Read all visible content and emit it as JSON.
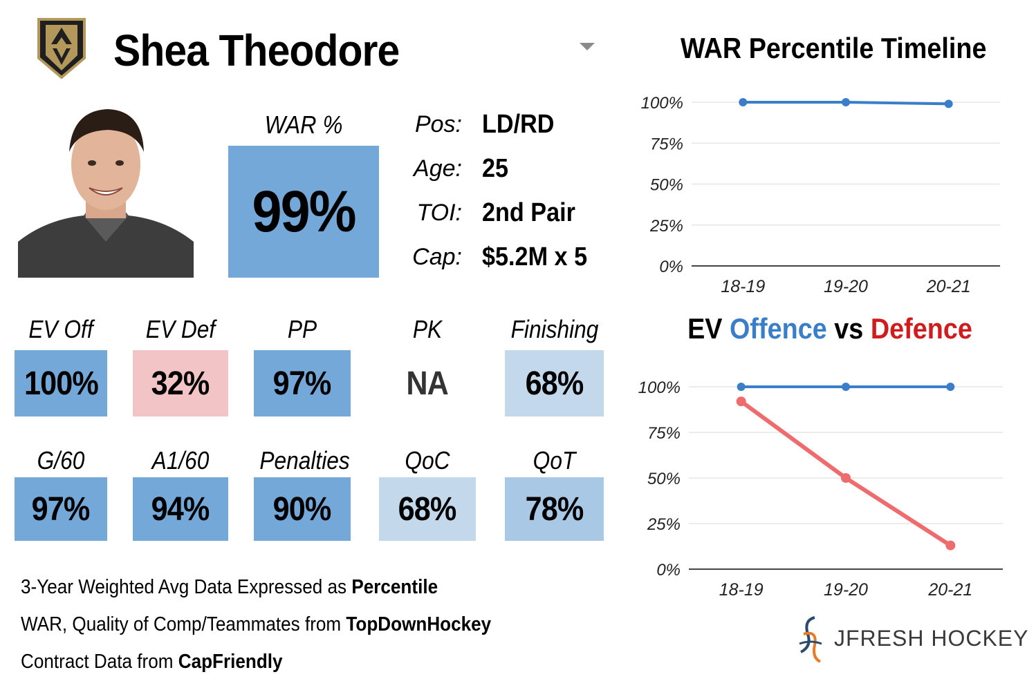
{
  "header": {
    "player_name": "Shea Theodore",
    "logo_icon": "vegas-golden-knights-helmet-logo"
  },
  "war": {
    "label": "WAR %",
    "value": "99%",
    "color": "#74a8d9"
  },
  "info": [
    {
      "key": "Pos:",
      "value": "LD/RD"
    },
    {
      "key": "Age:",
      "value": "25"
    },
    {
      "key": "TOI:",
      "value": "2nd Pair"
    },
    {
      "key": "Cap:",
      "value": "$5.2M x 5"
    }
  ],
  "stats_row1": [
    {
      "label": "EV Off",
      "value": "100%",
      "color": "#74a8d9"
    },
    {
      "label": "EV Def",
      "value": "32%",
      "color": "#f3c4c6"
    },
    {
      "label": "PP",
      "value": "97%",
      "color": "#74a8d9"
    },
    {
      "label": "PK",
      "value": "NA",
      "color": "#ffffff"
    },
    {
      "label": "Finishing",
      "value": "68%",
      "color": "#c4d8ec"
    }
  ],
  "stats_row2": [
    {
      "label": "G/60",
      "value": "97%",
      "color": "#74a8d9"
    },
    {
      "label": "A1/60",
      "value": "94%",
      "color": "#74a8d9"
    },
    {
      "label": "Penalties",
      "value": "90%",
      "color": "#74a8d9"
    },
    {
      "label": "QoC",
      "value": "68%",
      "color": "#c4d8ec"
    },
    {
      "label": "QoT",
      "value": "78%",
      "color": "#a9c8e6"
    }
  ],
  "notes": [
    {
      "text": "3-Year Weighted Avg Data Expressed as ",
      "bold": "Percentile"
    },
    {
      "text": "WAR, Quality of Comp/Teammates from ",
      "bold": "TopDownHockey"
    },
    {
      "text": "Contract Data from ",
      "bold": "CapFriendly"
    }
  ],
  "brand": {
    "text": "JFRESH HOCKEY",
    "icon": "jfresh-hockey-logo-icon"
  },
  "chart_data": [
    {
      "type": "line",
      "title": "WAR Percentile Timeline",
      "x": [
        "18-19",
        "19-20",
        "20-21"
      ],
      "yticks": [
        "0%",
        "25%",
        "50%",
        "75%",
        "100%"
      ],
      "ylim": [
        0,
        100
      ],
      "grid": true,
      "series": [
        {
          "values": [
            100,
            100,
            99
          ],
          "color": "#3a7dc9"
        }
      ]
    },
    {
      "type": "line",
      "title_parts": [
        {
          "text": "EV ",
          "color": "#000000"
        },
        {
          "text": "Offence",
          "color": "#3a7dc9"
        },
        {
          "text": " vs ",
          "color": "#000000"
        },
        {
          "text": "Defence",
          "color": "#d01c1c"
        }
      ],
      "x": [
        "18-19",
        "19-20",
        "20-21"
      ],
      "yticks": [
        "0%",
        "25%",
        "50%",
        "75%",
        "100%"
      ],
      "ylim": [
        0,
        100
      ],
      "grid": true,
      "series": [
        {
          "values": [
            100,
            100,
            100
          ],
          "color": "#3a7dc9"
        },
        {
          "values": [
            92,
            50,
            13
          ],
          "color": "#ee6b6e"
        }
      ]
    }
  ]
}
